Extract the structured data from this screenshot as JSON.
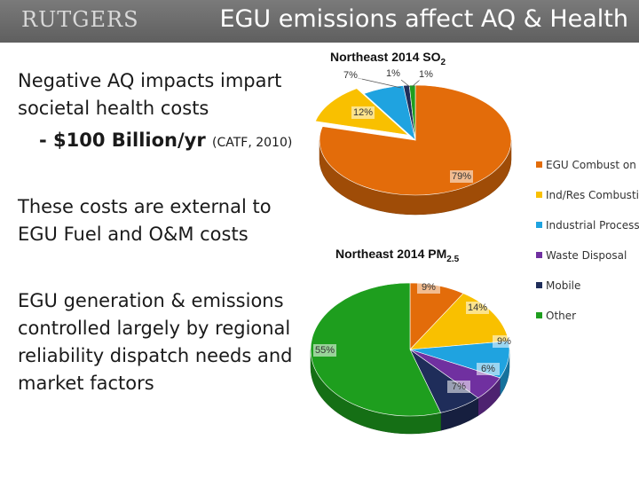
{
  "header": {
    "logo_text": "RUTGERS",
    "title": "EGU emissions affect AQ & Health"
  },
  "body": {
    "para1_line1": "Negative AQ impacts impart",
    "para1_line2": "societal health costs",
    "cost_value": "- $100 Billion/yr",
    "cost_source": "(CATF, 2010)",
    "para2_line1": "These costs are external to",
    "para2_line2": "EGU Fuel and O&M costs",
    "para3_line1": "EGU generation & emissions",
    "para3_line2": "controlled largely by regional",
    "para3_line3": "reliability dispatch needs and",
    "para3_line4": "market factors"
  },
  "chart_data": [
    {
      "type": "pie",
      "title_main": "Northeast 2014 SO",
      "title_sub": "2",
      "categories": [
        "EGU Combust on",
        "Ind/Res Combustion",
        "Industrial Processes",
        "Waste Disposal",
        "Mobile",
        "Other"
      ],
      "values": [
        79,
        12,
        7,
        0,
        1,
        1
      ],
      "labels": [
        "79%",
        "12%",
        "7%",
        "",
        "1%",
        "1%"
      ]
    },
    {
      "type": "pie",
      "title_main": "Northeast 2014 PM",
      "title_sub": "2.5",
      "categories": [
        "EGU Combust on",
        "Ind/Res Combustion",
        "Industrial Processes",
        "Waste Disposal",
        "Mobile",
        "Other"
      ],
      "values": [
        9,
        14,
        9,
        6,
        7,
        55
      ],
      "labels": [
        "9%",
        "14%",
        "9%",
        "6%",
        "7%",
        "55%"
      ]
    }
  ],
  "legend": {
    "items": [
      "EGU Combust on",
      "Ind/Res Combustion",
      "Industrial Processes",
      "Waste Disposal",
      "Mobile",
      "Other"
    ],
    "colors": [
      "#e36c0a",
      "#f9c000",
      "#1fa3e0",
      "#7030a0",
      "#1f2d5a",
      "#1e9e1e"
    ]
  }
}
